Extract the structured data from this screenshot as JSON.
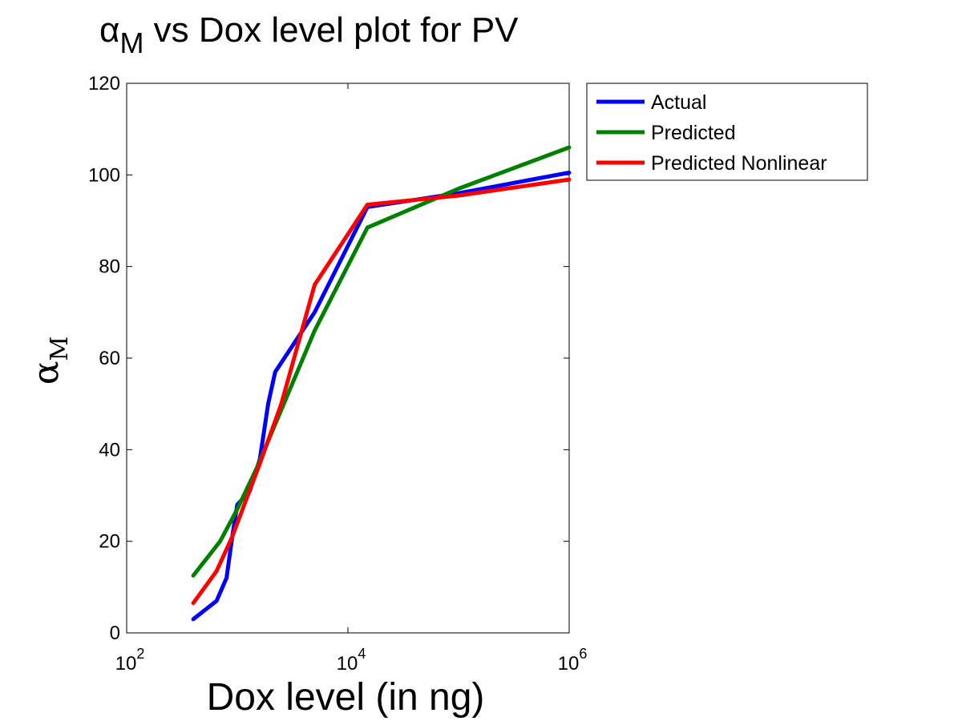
{
  "chart_data": {
    "type": "line",
    "title": {
      "symbol": "α",
      "subscript": "M",
      "rest": " vs Dox level plot for PV"
    },
    "xlabel": "Dox level (in ng)",
    "ylabel": {
      "symbol": "α",
      "subscript": "M"
    },
    "x_scale": "log",
    "xlim": [
      100,
      1000000
    ],
    "ylim": [
      0,
      120
    ],
    "x_ticks": [
      {
        "value": 100,
        "base": "10",
        "exp": "2"
      },
      {
        "value": 10000,
        "base": "10",
        "exp": "4"
      },
      {
        "value": 1000000,
        "base": "10",
        "exp": "6"
      }
    ],
    "y_ticks": [
      0,
      20,
      40,
      60,
      80,
      100,
      120
    ],
    "grid": false,
    "legend_position": "outside-top-right",
    "series": [
      {
        "name": "Actual",
        "color": "#0000ff",
        "x": [
          400,
          650,
          800,
          900,
          1000,
          1300,
          1600,
          1900,
          2200,
          5000,
          15000,
          100000,
          1000000
        ],
        "y": [
          3,
          7,
          12,
          21,
          28,
          31,
          38,
          50,
          57,
          70,
          93,
          96,
          100.5
        ]
      },
      {
        "name": "Predicted",
        "color": "#008000",
        "x": [
          400,
          700,
          1000,
          1500,
          5000,
          15000,
          100000,
          1000000
        ],
        "y": [
          12.5,
          20,
          27,
          36,
          66,
          88.5,
          97,
          106
        ]
      },
      {
        "name": "Predicted Nonlinear",
        "color": "#ff0000",
        "x": [
          400,
          650,
          900,
          1200,
          1600,
          2500,
          5000,
          15000,
          100000,
          1000000
        ],
        "y": [
          6.5,
          13.5,
          21,
          29,
          37,
          50,
          76,
          93.5,
          95.5,
          99
        ]
      }
    ]
  }
}
